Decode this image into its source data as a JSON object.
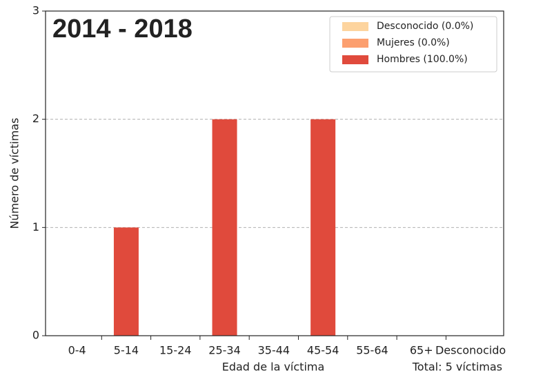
{
  "chart_data": {
    "type": "bar",
    "stacked": true,
    "annotation": "2014 - 2018",
    "xlabel": "Edad de la víctima",
    "ylabel": "Número de víctimas",
    "note": "Total: 5 víctimas",
    "categories": [
      "0-4",
      "5-14",
      "15-24",
      "25-34",
      "35-44",
      "45-54",
      "55-64",
      "65+",
      "Desconocido"
    ],
    "series": [
      {
        "name": "Desconocido (0.0%)",
        "color": "#fdd49e",
        "values": [
          0,
          0,
          0,
          0,
          0,
          0,
          0,
          0,
          0
        ]
      },
      {
        "name": "Mujeres (0.0%)",
        "color": "#fc9f6f",
        "values": [
          0,
          0,
          0,
          0,
          0,
          0,
          0,
          0,
          0
        ]
      },
      {
        "name": "Hombres (100.0%)",
        "color": "#e04a3c",
        "values": [
          0,
          1,
          0,
          2,
          0,
          2,
          0,
          0,
          0
        ]
      }
    ],
    "ylim": [
      0,
      3
    ],
    "yticks": [
      0,
      1,
      2,
      3
    ],
    "grid": true,
    "legend": "upper right"
  }
}
